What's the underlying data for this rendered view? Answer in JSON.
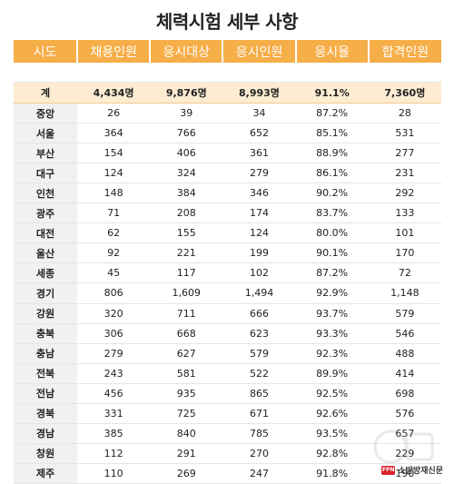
{
  "title": "체력시험 세부 사항",
  "columns": [
    "시도",
    "채용인원",
    "응시대상",
    "응시인원",
    "응시율",
    "합격인원"
  ],
  "total": [
    "계",
    "4,434명",
    "9,876명",
    "8,993명",
    "91.1%",
    "7,360명"
  ],
  "rows": [
    [
      "중앙",
      "26",
      "39",
      "34",
      "87.2%",
      "28"
    ],
    [
      "서울",
      "364",
      "766",
      "652",
      "85.1%",
      "531"
    ],
    [
      "부산",
      "154",
      "406",
      "361",
      "88.9%",
      "277"
    ],
    [
      "대구",
      "124",
      "324",
      "279",
      "86.1%",
      "231"
    ],
    [
      "인천",
      "148",
      "384",
      "346",
      "90.2%",
      "292"
    ],
    [
      "광주",
      "71",
      "208",
      "174",
      "83.7%",
      "133"
    ],
    [
      "대전",
      "62",
      "155",
      "124",
      "80.0%",
      "101"
    ],
    [
      "울산",
      "92",
      "221",
      "199",
      "90.1%",
      "170"
    ],
    [
      "세종",
      "45",
      "117",
      "102",
      "87.2%",
      "72"
    ],
    [
      "경기",
      "806",
      "1,609",
      "1,494",
      "92.9%",
      "1,148"
    ],
    [
      "강원",
      "320",
      "711",
      "666",
      "93.7%",
      "579"
    ],
    [
      "충북",
      "306",
      "668",
      "623",
      "93.3%",
      "546"
    ],
    [
      "충남",
      "279",
      "627",
      "579",
      "92.3%",
      "488"
    ],
    [
      "전북",
      "243",
      "581",
      "522",
      "89.9%",
      "414"
    ],
    [
      "전남",
      "456",
      "935",
      "865",
      "92.5%",
      "698"
    ],
    [
      "경북",
      "331",
      "725",
      "671",
      "92.6%",
      "576"
    ],
    [
      "경남",
      "385",
      "840",
      "785",
      "93.5%",
      "657"
    ],
    [
      "창원",
      "112",
      "291",
      "270",
      "92.8%",
      "229"
    ],
    [
      "제주",
      "110",
      "269",
      "247",
      "91.8%",
      "190"
    ]
  ],
  "footer": {
    "logo_text": "FPN",
    "source": "소방방재신문"
  },
  "colors": {
    "header": "#f6ae48",
    "total_row": "#fdecd2",
    "region_cell": "#f1f1f1"
  }
}
